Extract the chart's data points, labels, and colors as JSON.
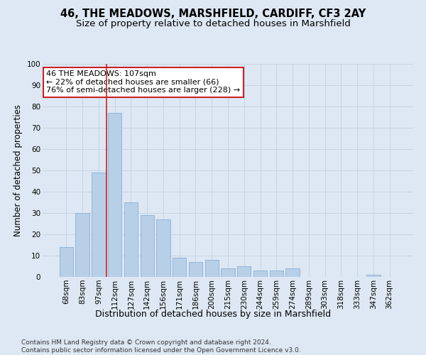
{
  "title1": "46, THE MEADOWS, MARSHFIELD, CARDIFF, CF3 2AY",
  "title2": "Size of property relative to detached houses in Marshfield",
  "xlabel": "Distribution of detached houses by size in Marshfield",
  "ylabel": "Number of detached properties",
  "categories": [
    "68sqm",
    "83sqm",
    "97sqm",
    "112sqm",
    "127sqm",
    "142sqm",
    "156sqm",
    "171sqm",
    "186sqm",
    "200sqm",
    "215sqm",
    "230sqm",
    "244sqm",
    "259sqm",
    "274sqm",
    "289sqm",
    "303sqm",
    "318sqm",
    "333sqm",
    "347sqm",
    "362sqm"
  ],
  "values": [
    14,
    30,
    49,
    77,
    35,
    29,
    27,
    9,
    7,
    8,
    4,
    5,
    3,
    3,
    4,
    0,
    0,
    0,
    0,
    1,
    0
  ],
  "bar_color": "#b8cfe8",
  "bar_edge_color": "#8aafd4",
  "grid_color": "#c8d4e4",
  "background_color": "#dde8f4",
  "vline_color": "#cc2222",
  "annotation_text": "46 THE MEADOWS: 107sqm\n← 22% of detached houses are smaller (66)\n76% of semi-detached houses are larger (228) →",
  "annotation_box_color": "#ffffff",
  "annotation_box_edge_color": "#cc2222",
  "ylim": [
    0,
    100
  ],
  "yticks": [
    0,
    10,
    20,
    30,
    40,
    50,
    60,
    70,
    80,
    90,
    100
  ],
  "footnote": "Contains HM Land Registry data © Crown copyright and database right 2024.\nContains public sector information licensed under the Open Government Licence v3.0.",
  "title1_fontsize": 10.5,
  "title2_fontsize": 9.5,
  "xlabel_fontsize": 9,
  "ylabel_fontsize": 8.5,
  "tick_fontsize": 7.5,
  "annotation_fontsize": 8,
  "footnote_fontsize": 6.5
}
